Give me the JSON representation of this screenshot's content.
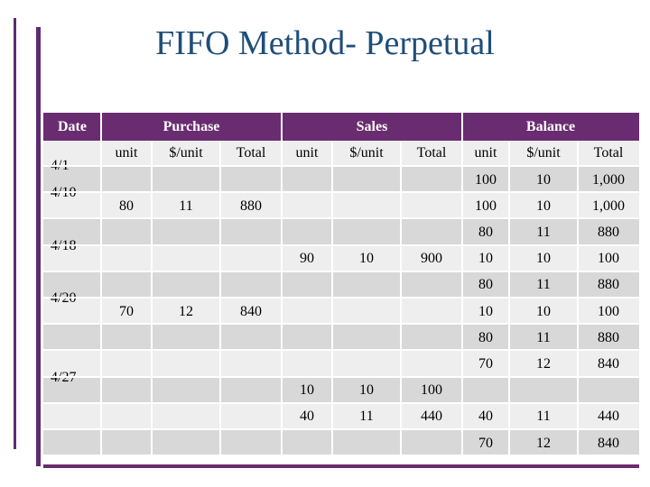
{
  "title": "FIFO Method- Perpetual",
  "headers": {
    "date": "Date",
    "purchase": "Purchase",
    "sales": "Sales",
    "balance": "Balance"
  },
  "subheaders": {
    "p_unit": "unit",
    "p_cost": "$/unit",
    "p_total": "Total",
    "s_unit": "unit",
    "s_cost": "$/unit",
    "s_total": "Total",
    "b_unit": "unit",
    "b_cost": "$/unit",
    "b_total": "Total"
  },
  "rows": [
    {
      "date": "4/1",
      "b_unit": "100",
      "b_cost": "10",
      "b_total": "1,000"
    },
    {
      "date": "4/10",
      "p_unit": "80",
      "p_cost": "11",
      "p_total": "880",
      "b_unit": "100",
      "b_cost": "10",
      "b_total": "1,000"
    },
    {
      "b_unit": "80",
      "b_cost": "11",
      "b_total": "880"
    },
    {
      "date": "4/18",
      "s_unit": "90",
      "s_cost": "10",
      "s_total": "900",
      "b_unit": "10",
      "b_cost": "10",
      "b_total": "100"
    },
    {
      "b_unit": "80",
      "b_cost": "11",
      "b_total": "880"
    },
    {
      "date": "4/20",
      "p_unit": "70",
      "p_cost": "12",
      "p_total": "840",
      "b_unit": "10",
      "b_cost": "10",
      "b_total": "100"
    },
    {
      "b_unit": "80",
      "b_cost": "11",
      "b_total": "880"
    },
    {
      "b_unit": "70",
      "b_cost": "12",
      "b_total": "840"
    },
    {
      "date": "4/27",
      "s_unit": "10",
      "s_cost": "10",
      "s_total": "100"
    },
    {
      "s_unit": "40",
      "s_cost": "11",
      "s_total": "440",
      "b_unit": "40",
      "b_cost": "11",
      "b_total": "440"
    },
    {
      "b_unit": "70",
      "b_cost": "12",
      "b_total": "840"
    }
  ]
}
